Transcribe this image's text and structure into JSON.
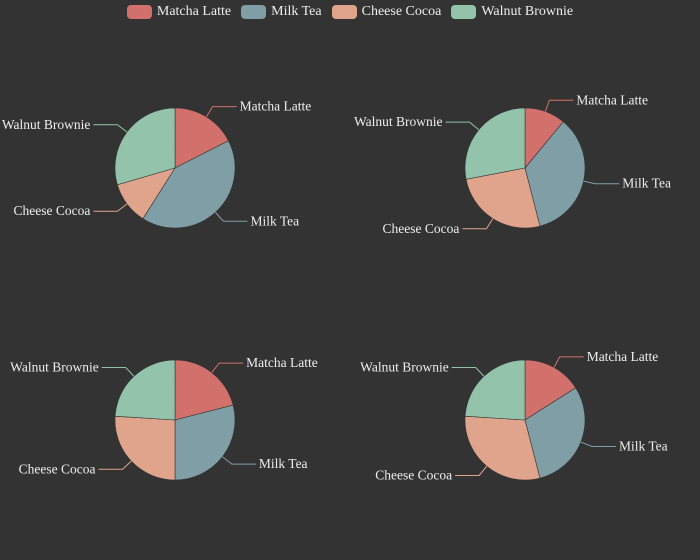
{
  "legend": {
    "items": [
      {
        "label": "Matcha Latte",
        "color": "#d2716b"
      },
      {
        "label": "Milk Tea",
        "color": "#7f9ea5"
      },
      {
        "label": "Cheese Cocoa",
        "color": "#e0a48c"
      },
      {
        "label": "Walnut Brownie",
        "color": "#93c4ab"
      }
    ]
  },
  "chart_data": [
    {
      "type": "pie",
      "categories": [
        "Matcha Latte",
        "Milk Tea",
        "Cheese Cocoa",
        "Walnut Brownie"
      ],
      "values": [
        17.5,
        41.5,
        11.5,
        29.5
      ]
    },
    {
      "type": "pie",
      "categories": [
        "Matcha Latte",
        "Milk Tea",
        "Cheese Cocoa",
        "Walnut Brownie"
      ],
      "values": [
        11,
        35,
        26,
        28
      ]
    },
    {
      "type": "pie",
      "categories": [
        "Matcha Latte",
        "Milk Tea",
        "Cheese Cocoa",
        "Walnut Brownie"
      ],
      "values": [
        21,
        29,
        26,
        24
      ]
    },
    {
      "type": "pie",
      "categories": [
        "Matcha Latte",
        "Milk Tea",
        "Cheese Cocoa",
        "Walnut Brownie"
      ],
      "values": [
        16,
        30,
        30,
        24
      ]
    }
  ]
}
